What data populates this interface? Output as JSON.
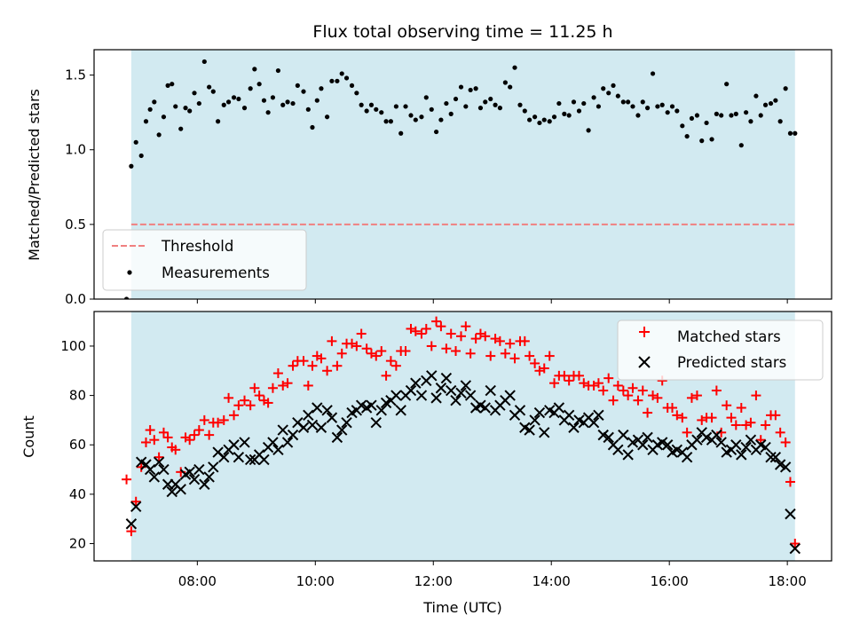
{
  "title": "Flux total observing time = 11.25 h",
  "colors": {
    "band": "#add8e6",
    "threshold": "#f08080",
    "matched": "#ff0000",
    "predicted": "#000000",
    "measurement": "#000000"
  },
  "chart_data": [
    {
      "type": "scatter",
      "panel": "top",
      "ylabel": "Matched/Predicted stars",
      "xlim": [
        6.25,
        18.75
      ],
      "ylim": [
        0,
        1.67
      ],
      "yticks": [
        {
          "v": 0.0,
          "label": "0.0"
        },
        {
          "v": 0.5,
          "label": "0.5"
        },
        {
          "v": 1.0,
          "label": "1.0"
        },
        {
          "v": 1.5,
          "label": "1.5"
        }
      ],
      "observing_window": [
        6.88,
        18.13
      ],
      "threshold": 0.5,
      "legend": {
        "placement": "lower-left",
        "threshold_label": "Threshold",
        "measurements_label": "Measurements"
      },
      "series": [
        {
          "name": "Measurements",
          "x": [
            6.8,
            6.88,
            6.96,
            7.05,
            7.13,
            7.2,
            7.27,
            7.35,
            7.43,
            7.5,
            7.57,
            7.63,
            7.72,
            7.8,
            7.87,
            7.95,
            8.03,
            8.12,
            8.2,
            8.27,
            8.35,
            8.45,
            8.53,
            8.62,
            8.7,
            8.8,
            8.9,
            8.97,
            9.05,
            9.13,
            9.2,
            9.28,
            9.37,
            9.45,
            9.53,
            9.62,
            9.7,
            9.8,
            9.88,
            9.95,
            10.03,
            10.1,
            10.2,
            10.28,
            10.37,
            10.45,
            10.53,
            10.62,
            10.7,
            10.78,
            10.87,
            10.95,
            11.03,
            11.12,
            11.2,
            11.28,
            11.37,
            11.45,
            11.53,
            11.62,
            11.7,
            11.8,
            11.88,
            11.97,
            12.05,
            12.13,
            12.22,
            12.3,
            12.38,
            12.47,
            12.55,
            12.63,
            12.72,
            12.8,
            12.88,
            12.97,
            13.05,
            13.13,
            13.22,
            13.3,
            13.38,
            13.47,
            13.55,
            13.63,
            13.72,
            13.8,
            13.88,
            13.97,
            14.05,
            14.13,
            14.22,
            14.3,
            14.38,
            14.47,
            14.55,
            14.63,
            14.72,
            14.8,
            14.88,
            14.97,
            15.05,
            15.13,
            15.22,
            15.3,
            15.38,
            15.47,
            15.55,
            15.63,
            15.72,
            15.8,
            15.88,
            15.97,
            16.05,
            16.13,
            16.22,
            16.3,
            16.38,
            16.47,
            16.55,
            16.63,
            16.72,
            16.8,
            16.88,
            16.97,
            17.05,
            17.13,
            17.22,
            17.3,
            17.38,
            17.47,
            17.55,
            17.63,
            17.72,
            17.8,
            17.88,
            17.97,
            18.05,
            18.13
          ],
          "y": [
            0.0,
            0.89,
            1.05,
            0.96,
            1.19,
            1.27,
            1.32,
            1.1,
            1.22,
            1.43,
            1.44,
            1.29,
            1.14,
            1.28,
            1.26,
            1.38,
            1.31,
            1.59,
            1.42,
            1.39,
            1.19,
            1.3,
            1.32,
            1.35,
            1.34,
            1.28,
            1.41,
            1.54,
            1.44,
            1.33,
            1.25,
            1.35,
            1.53,
            1.3,
            1.32,
            1.31,
            1.43,
            1.39,
            1.27,
            1.15,
            1.33,
            1.41,
            1.22,
            1.46,
            1.46,
            1.51,
            1.48,
            1.43,
            1.38,
            1.3,
            1.26,
            1.3,
            1.27,
            1.25,
            1.19,
            1.19,
            1.29,
            1.11,
            1.29,
            1.23,
            1.2,
            1.22,
            1.35,
            1.27,
            1.12,
            1.2,
            1.31,
            1.24,
            1.34,
            1.42,
            1.29,
            1.4,
            1.41,
            1.28,
            1.32,
            1.34,
            1.3,
            1.28,
            1.45,
            1.42,
            1.55,
            1.3,
            1.26,
            1.2,
            1.22,
            1.18,
            1.2,
            1.19,
            1.22,
            1.31,
            1.24,
            1.23,
            1.32,
            1.26,
            1.31,
            1.13,
            1.35,
            1.29,
            1.41,
            1.38,
            1.43,
            1.36,
            1.32,
            1.32,
            1.29,
            1.23,
            1.32,
            1.28,
            1.51,
            1.29,
            1.3,
            1.25,
            1.29,
            1.26,
            1.16,
            1.09,
            1.21,
            1.23,
            1.06,
            1.18,
            1.07,
            1.24,
            1.23,
            1.44,
            1.23,
            1.24,
            1.03,
            1.25,
            1.19,
            1.36,
            1.23,
            1.3,
            1.31,
            1.33,
            1.19,
            1.41,
            1.11,
            1.11
          ]
        }
      ]
    },
    {
      "type": "scatter",
      "panel": "bottom",
      "xlabel": "Time (UTC)",
      "ylabel": "Count",
      "xlim": [
        6.25,
        18.75
      ],
      "ylim": [
        13,
        114
      ],
      "yticks": [
        {
          "v": 20,
          "label": "20"
        },
        {
          "v": 40,
          "label": "40"
        },
        {
          "v": 60,
          "label": "60"
        },
        {
          "v": 80,
          "label": "80"
        },
        {
          "v": 100,
          "label": "100"
        }
      ],
      "xticks": [
        {
          "v": 8,
          "label": "08:00"
        },
        {
          "v": 10,
          "label": "10:00"
        },
        {
          "v": 12,
          "label": "12:00"
        },
        {
          "v": 14,
          "label": "14:00"
        },
        {
          "v": 16,
          "label": "16:00"
        },
        {
          "v": 18,
          "label": "18:00"
        }
      ],
      "observing_window": [
        6.88,
        18.13
      ],
      "legend": {
        "placement": "upper-right"
      },
      "series": [
        {
          "name": "Matched stars",
          "marker": "plus",
          "x": [
            6.8,
            6.88,
            6.96,
            7.05,
            7.13,
            7.2,
            7.27,
            7.35,
            7.43,
            7.5,
            7.57,
            7.63,
            7.72,
            7.8,
            7.87,
            7.95,
            8.03,
            8.12,
            8.2,
            8.27,
            8.35,
            8.45,
            8.53,
            8.62,
            8.7,
            8.8,
            8.9,
            8.97,
            9.05,
            9.13,
            9.2,
            9.28,
            9.37,
            9.45,
            9.53,
            9.62,
            9.7,
            9.8,
            9.88,
            9.95,
            10.03,
            10.1,
            10.2,
            10.28,
            10.37,
            10.45,
            10.53,
            10.62,
            10.7,
            10.78,
            10.87,
            10.95,
            11.03,
            11.12,
            11.2,
            11.28,
            11.37,
            11.45,
            11.53,
            11.62,
            11.7,
            11.8,
            11.88,
            11.97,
            12.05,
            12.13,
            12.22,
            12.3,
            12.38,
            12.47,
            12.55,
            12.63,
            12.72,
            12.8,
            12.88,
            12.97,
            13.05,
            13.13,
            13.22,
            13.3,
            13.38,
            13.47,
            13.55,
            13.63,
            13.72,
            13.8,
            13.88,
            13.97,
            14.05,
            14.13,
            14.22,
            14.3,
            14.38,
            14.47,
            14.55,
            14.63,
            14.72,
            14.8,
            14.88,
            14.97,
            15.05,
            15.13,
            15.22,
            15.3,
            15.38,
            15.47,
            15.55,
            15.63,
            15.72,
            15.8,
            15.88,
            15.97,
            16.05,
            16.13,
            16.22,
            16.3,
            16.38,
            16.47,
            16.55,
            16.63,
            16.72,
            16.8,
            16.88,
            16.97,
            17.05,
            17.13,
            17.22,
            17.3,
            17.38,
            17.47,
            17.55,
            17.63,
            17.72,
            17.8,
            17.88,
            17.97,
            18.05,
            18.13
          ],
          "y": [
            46,
            25,
            37,
            51,
            61,
            66,
            62,
            55,
            65,
            63,
            59,
            58,
            49,
            63,
            62,
            64,
            66,
            70,
            64,
            69,
            69,
            70,
            79,
            72,
            76,
            78,
            76,
            83,
            80,
            78,
            77,
            83,
            89,
            84,
            85,
            92,
            94,
            94,
            84,
            92,
            96,
            95,
            90,
            102,
            92,
            97,
            101,
            101,
            100,
            105,
            99,
            97,
            96,
            98,
            88,
            94,
            92,
            98,
            98,
            107,
            106,
            105,
            107,
            100,
            110,
            108,
            99,
            105,
            98,
            104,
            108,
            97,
            103,
            105,
            104,
            96,
            103,
            102,
            97,
            101,
            95,
            102,
            102,
            96,
            93,
            90,
            91,
            96,
            85,
            88,
            88,
            86,
            88,
            88,
            85,
            84,
            84,
            85,
            82,
            87,
            78,
            84,
            82,
            80,
            83,
            78,
            82,
            73,
            80,
            79,
            86,
            75,
            75,
            72,
            71,
            65,
            79,
            80,
            70,
            71,
            71,
            82,
            65,
            76,
            71,
            68,
            75,
            68,
            69,
            80,
            62,
            68,
            72,
            72,
            65,
            61,
            45,
            20
          ]
        },
        {
          "name": "Predicted stars",
          "marker": "cross",
          "x": [
            6.88,
            6.96,
            7.05,
            7.13,
            7.2,
            7.27,
            7.35,
            7.43,
            7.5,
            7.57,
            7.63,
            7.72,
            7.8,
            7.87,
            7.95,
            8.03,
            8.12,
            8.2,
            8.27,
            8.35,
            8.45,
            8.53,
            8.62,
            8.7,
            8.8,
            8.9,
            8.97,
            9.05,
            9.13,
            9.2,
            9.28,
            9.37,
            9.45,
            9.53,
            9.62,
            9.7,
            9.8,
            9.88,
            9.95,
            10.03,
            10.1,
            10.2,
            10.28,
            10.37,
            10.45,
            10.53,
            10.62,
            10.7,
            10.78,
            10.87,
            10.95,
            11.03,
            11.12,
            11.2,
            11.28,
            11.37,
            11.45,
            11.53,
            11.62,
            11.7,
            11.8,
            11.88,
            11.97,
            12.05,
            12.13,
            12.22,
            12.3,
            12.38,
            12.47,
            12.55,
            12.63,
            12.72,
            12.8,
            12.88,
            12.97,
            13.05,
            13.13,
            13.22,
            13.3,
            13.38,
            13.47,
            13.55,
            13.63,
            13.72,
            13.8,
            13.88,
            13.97,
            14.05,
            14.13,
            14.22,
            14.3,
            14.38,
            14.47,
            14.55,
            14.63,
            14.72,
            14.8,
            14.88,
            14.97,
            15.05,
            15.13,
            15.22,
            15.3,
            15.38,
            15.47,
            15.55,
            15.63,
            15.72,
            15.8,
            15.88,
            15.97,
            16.05,
            16.13,
            16.22,
            16.3,
            16.38,
            16.47,
            16.55,
            16.63,
            16.72,
            16.8,
            16.88,
            16.97,
            17.05,
            17.13,
            17.22,
            17.3,
            17.38,
            17.47,
            17.55,
            17.63,
            17.72,
            17.8,
            17.88,
            17.97,
            18.05,
            18.13
          ],
          "y": [
            28,
            35,
            53,
            52,
            50,
            47,
            53,
            50,
            44,
            41,
            44,
            42,
            48,
            49,
            46,
            50,
            44,
            47,
            51,
            57,
            55,
            58,
            60,
            55,
            61,
            54,
            54,
            56,
            54,
            59,
            61,
            58,
            66,
            61,
            64,
            69,
            67,
            72,
            68,
            75,
            67,
            74,
            71,
            63,
            66,
            69,
            73,
            74,
            76,
            75,
            76,
            69,
            74,
            77,
            78,
            80,
            74,
            80,
            82,
            85,
            80,
            86,
            88,
            79,
            83,
            87,
            82,
            78,
            81,
            84,
            80,
            75,
            76,
            75,
            82,
            74,
            76,
            78,
            80,
            72,
            74,
            67,
            66,
            70,
            73,
            65,
            74,
            73,
            75,
            70,
            72,
            67,
            70,
            69,
            71,
            69,
            72,
            64,
            63,
            60,
            58,
            64,
            56,
            61,
            62,
            60,
            63,
            58,
            60,
            61,
            60,
            57,
            58,
            57,
            55,
            60,
            62,
            65,
            63,
            62,
            64,
            61,
            57,
            58,
            60,
            56,
            59,
            62,
            58,
            60,
            59,
            55,
            55,
            52,
            51,
            32,
            18
          ]
        }
      ]
    }
  ]
}
